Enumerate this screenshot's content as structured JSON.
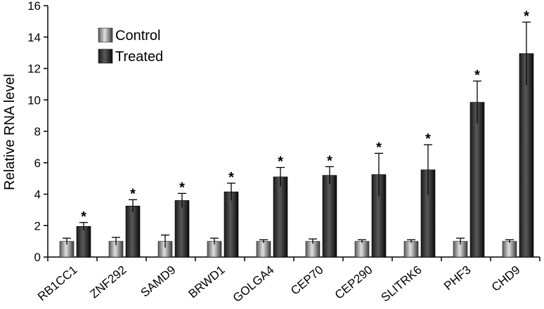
{
  "chart_data": {
    "type": "bar",
    "title": "",
    "xlabel": "",
    "ylabel": "Relative RNA level",
    "ylim": [
      0,
      16
    ],
    "yticks": [
      0,
      2,
      4,
      6,
      8,
      10,
      12,
      14,
      16
    ],
    "categories": [
      "RB1CC1",
      "ZNF292",
      "SAMD9",
      "BRWD1",
      "GOLGA4",
      "CEP70",
      "CEP290",
      "SLITRK6",
      "PHF3",
      "CHD9"
    ],
    "series": [
      {
        "name": "Control",
        "color_light": "#e6e6e6",
        "color_dark": "#4a4a4a",
        "values": [
          1,
          1,
          1,
          1,
          1,
          1,
          1,
          1,
          1,
          1
        ],
        "errors": [
          0.2,
          0.25,
          0.4,
          0.2,
          0.1,
          0.15,
          0.1,
          0.1,
          0.2,
          0.1
        ]
      },
      {
        "name": "Treated",
        "color_light": "#3a3a3a",
        "color_dark": "#0d0d0d",
        "values": [
          1.95,
          3.25,
          3.6,
          4.15,
          5.1,
          5.2,
          5.25,
          5.55,
          9.85,
          12.95
        ],
        "errors": [
          0.25,
          0.4,
          0.45,
          0.55,
          0.6,
          0.55,
          1.35,
          1.6,
          1.35,
          2.0
        ]
      }
    ],
    "significance_marker": "*",
    "legend": {
      "position": "top-left"
    }
  }
}
